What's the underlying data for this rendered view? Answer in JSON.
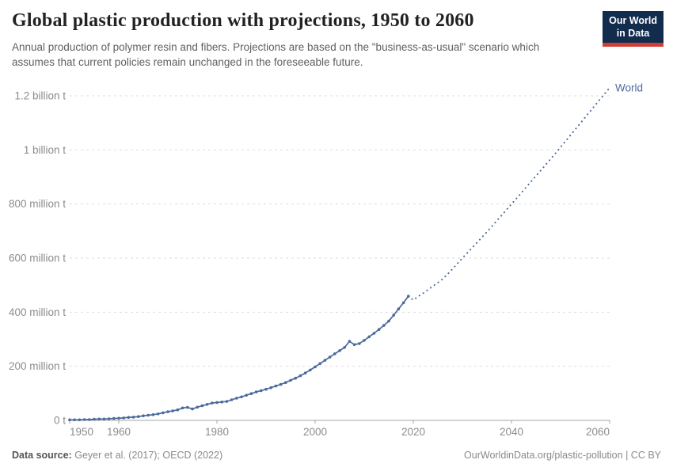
{
  "header": {
    "title": "Global plastic production with projections, 1950 to 2060",
    "subtitle": "Annual production of polymer resin and fibers. Projections are based on the \"business-as-usual\" scenario which assumes that current policies remain unchanged in the foreseeable future."
  },
  "logo": {
    "line1": "Our World",
    "line2": "in Data"
  },
  "footer": {
    "source_label": "Data source:",
    "source_value": "Geyer et al. (2017); OECD (2022)",
    "link": "OurWorldinData.org/plastic-pollution",
    "separator": " | ",
    "license": "CC BY"
  },
  "chart_data": {
    "type": "line",
    "title": "Global plastic production with projections, 1950 to 2060",
    "unit": "million tonnes",
    "series_name": "World",
    "x_range": [
      1950,
      2060
    ],
    "y_range": [
      0,
      1200
    ],
    "grid": true,
    "legend_position": "end-of-line",
    "y_ticks": [
      {
        "value": 0,
        "label": "0 t"
      },
      {
        "value": 200,
        "label": "200 million t"
      },
      {
        "value": 400,
        "label": "400 million t"
      },
      {
        "value": 600,
        "label": "600 million t"
      },
      {
        "value": 800,
        "label": "800 million t"
      },
      {
        "value": 1000,
        "label": "1 billion t"
      },
      {
        "value": 1200,
        "label": "1.2 billion t"
      }
    ],
    "x_ticks": [
      1950,
      1960,
      1980,
      2000,
      2020,
      2040,
      2060
    ],
    "historical": {
      "start_year": 1950,
      "values": [
        2,
        2,
        2,
        3,
        3,
        4,
        5,
        5,
        6,
        7,
        8,
        9,
        11,
        12,
        14,
        17,
        19,
        21,
        24,
        28,
        32,
        35,
        39,
        46,
        48,
        42,
        49,
        54,
        59,
        64,
        66,
        68,
        70,
        76,
        82,
        87,
        93,
        99,
        105,
        110,
        115,
        121,
        127,
        133,
        140,
        148,
        156,
        165,
        175,
        186,
        198,
        210,
        222,
        234,
        246,
        258,
        270,
        292,
        280,
        284,
        296,
        309,
        322,
        336,
        351,
        367,
        389,
        412,
        435,
        459
      ]
    },
    "projection": {
      "start_year": 2019,
      "values": [
        459,
        445,
        458,
        470,
        483,
        496,
        509,
        523,
        541,
        560,
        580,
        600,
        619,
        638,
        658,
        677,
        697,
        717,
        738,
        758,
        779,
        800,
        820,
        841,
        862,
        883,
        904,
        925,
        946,
        967,
        988,
        1010,
        1032,
        1054,
        1076,
        1098,
        1120,
        1142,
        1164,
        1186,
        1208,
        1230
      ]
    },
    "colors": {
      "line": "#4c6a9c",
      "grid": "#dddddd",
      "axis": "#a5a5a5",
      "tick_text": "#8c8c8c"
    }
  }
}
